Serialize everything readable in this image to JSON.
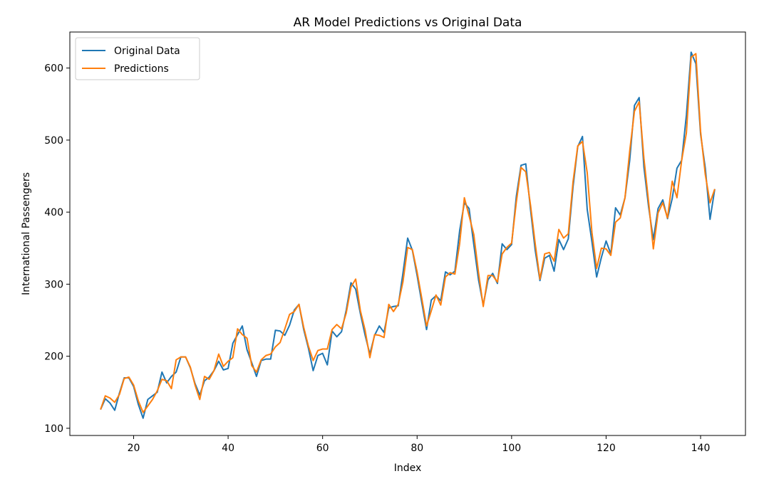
{
  "chart_data": {
    "type": "line",
    "title": "AR Model Predictions vs Original Data",
    "xlabel": "Index",
    "ylabel": "International Passengers",
    "xlim": [
      6.5,
      149.5
    ],
    "ylim": [
      90,
      650
    ],
    "xticks": [
      20,
      40,
      60,
      80,
      100,
      120,
      140
    ],
    "yticks": [
      100,
      200,
      300,
      400,
      500,
      600
    ],
    "grid": false,
    "legend_position": "top-left",
    "x": [
      13,
      14,
      15,
      16,
      17,
      18,
      19,
      20,
      21,
      22,
      23,
      24,
      25,
      26,
      27,
      28,
      29,
      30,
      31,
      32,
      33,
      34,
      35,
      36,
      37,
      38,
      39,
      40,
      41,
      42,
      43,
      44,
      45,
      46,
      47,
      48,
      49,
      50,
      51,
      52,
      53,
      54,
      55,
      56,
      57,
      58,
      59,
      60,
      61,
      62,
      63,
      64,
      65,
      66,
      67,
      68,
      69,
      70,
      71,
      72,
      73,
      74,
      75,
      76,
      77,
      78,
      79,
      80,
      81,
      82,
      83,
      84,
      85,
      86,
      87,
      88,
      89,
      90,
      91,
      92,
      93,
      94,
      95,
      96,
      97,
      98,
      99,
      100,
      101,
      102,
      103,
      104,
      105,
      106,
      107,
      108,
      109,
      110,
      111,
      112,
      113,
      114,
      115,
      116,
      117,
      118,
      119,
      120,
      121,
      122,
      123,
      124,
      125,
      126,
      127,
      128,
      129,
      130,
      131,
      132,
      133,
      134,
      135,
      136,
      137,
      138,
      139,
      140,
      141,
      142,
      143
    ],
    "series": [
      {
        "name": "Original Data",
        "color": "#1f77b4",
        "values": [
          126,
          141,
          135,
          125,
          149,
          170,
          170,
          158,
          133,
          114,
          140,
          145,
          150,
          178,
          163,
          172,
          178,
          199,
          199,
          184,
          162,
          146,
          166,
          171,
          180,
          193,
          181,
          183,
          218,
          230,
          242,
          209,
          191,
          172,
          194,
          196,
          196,
          236,
          235,
          229,
          243,
          264,
          272,
          237,
          211,
          180,
          201,
          204,
          188,
          235,
          227,
          234,
          264,
          302,
          293,
          259,
          229,
          203,
          229,
          242,
          233,
          267,
          269,
          270,
          315,
          364,
          347,
          312,
          274,
          237,
          278,
          284,
          277,
          317,
          313,
          318,
          374,
          413,
          405,
          355,
          306,
          271,
          306,
          315,
          301,
          356,
          348,
          355,
          422,
          465,
          467,
          404,
          347,
          305,
          336,
          340,
          318,
          362,
          348,
          363,
          435,
          491,
          505,
          404,
          359,
          310,
          337,
          360,
          342,
          406,
          396,
          420,
          472,
          548,
          559,
          463,
          407,
          362,
          405,
          417,
          391,
          419,
          461,
          472,
          535,
          622,
          606,
          508,
          461,
          390,
          432
        ]
      },
      {
        "name": "Predictions",
        "color": "#ff7f0e",
        "values": [
          126,
          145,
          142,
          136,
          147,
          169,
          171,
          160,
          138,
          122,
          131,
          140,
          152,
          168,
          166,
          155,
          195,
          199,
          199,
          185,
          160,
          140,
          172,
          168,
          180,
          203,
          186,
          193,
          198,
          238,
          230,
          225,
          187,
          178,
          195,
          201,
          203,
          213,
          219,
          238,
          258,
          262,
          272,
          240,
          214,
          194,
          208,
          210,
          210,
          237,
          244,
          238,
          260,
          296,
          307,
          263,
          236,
          198,
          230,
          229,
          226,
          272,
          262,
          272,
          303,
          351,
          348,
          317,
          280,
          242,
          263,
          285,
          271,
          310,
          316,
          314,
          356,
          420,
          395,
          369,
          316,
          269,
          312,
          312,
          303,
          342,
          351,
          357,
          414,
          462,
          456,
          410,
          356,
          307,
          342,
          344,
          332,
          376,
          364,
          370,
          442,
          492,
          498,
          455,
          372,
          322,
          350,
          349,
          340,
          386,
          392,
          420,
          485,
          540,
          553,
          475,
          414,
          349,
          399,
          413,
          392,
          443,
          420,
          472,
          510,
          615,
          620,
          512,
          452,
          413,
          432
        ]
      }
    ]
  }
}
